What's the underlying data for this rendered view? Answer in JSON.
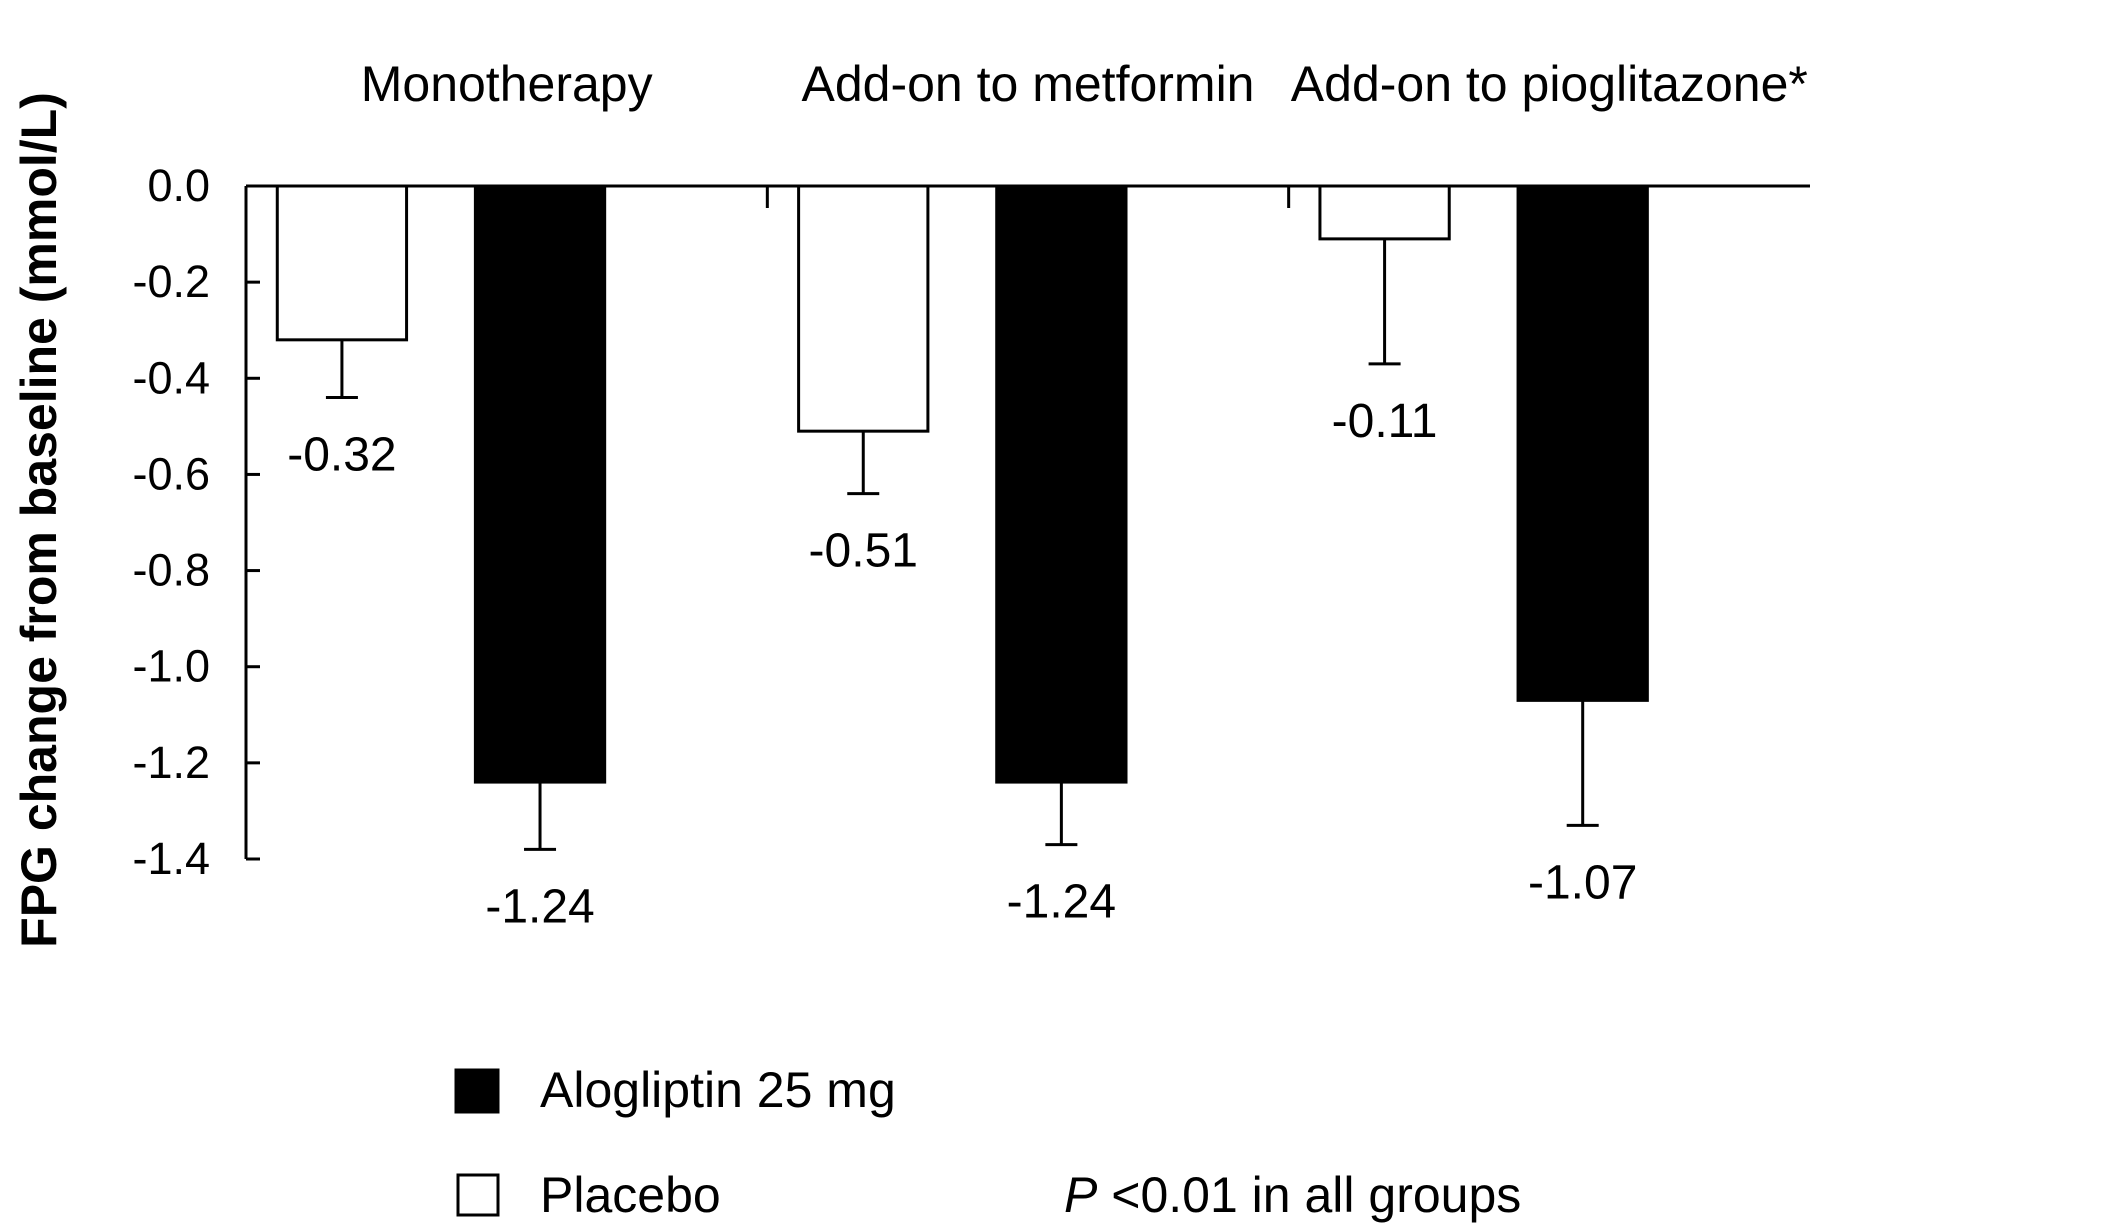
{
  "chart_data": {
    "type": "bar",
    "categories": [
      "Monotherapy",
      "Add-on to metformin",
      "Add-on to pioglitazone*"
    ],
    "series": [
      {
        "name": "Placebo",
        "values": [
          -0.32,
          -0.51,
          -0.11
        ],
        "error": [
          0.12,
          0.13,
          0.26
        ],
        "labels": [
          "-0.32",
          "-0.51",
          "-0.11"
        ],
        "color": "#ffffff"
      },
      {
        "name": "Alogliptin 25 mg",
        "values": [
          -1.24,
          -1.24,
          -1.07
        ],
        "error": [
          0.14,
          0.13,
          0.26
        ],
        "labels": [
          "-1.24",
          "-1.24",
          "-1.07"
        ],
        "color": "#000000"
      }
    ],
    "ylabel": "FPG change from baseline (mmol/L)",
    "ylim": [
      -1.4,
      0.0
    ],
    "yticks": [
      "0.0",
      "-0.2",
      "-0.4",
      "-0.6",
      "-0.8",
      "-1.0",
      "-1.2",
      "-1.4"
    ],
    "grid": false,
    "legend": {
      "placement": "bottom",
      "entries": [
        "Alogliptin 25 mg",
        "Placebo"
      ]
    },
    "annotation": {
      "italic": "P",
      "rest": " <0.01 in all groups"
    }
  }
}
